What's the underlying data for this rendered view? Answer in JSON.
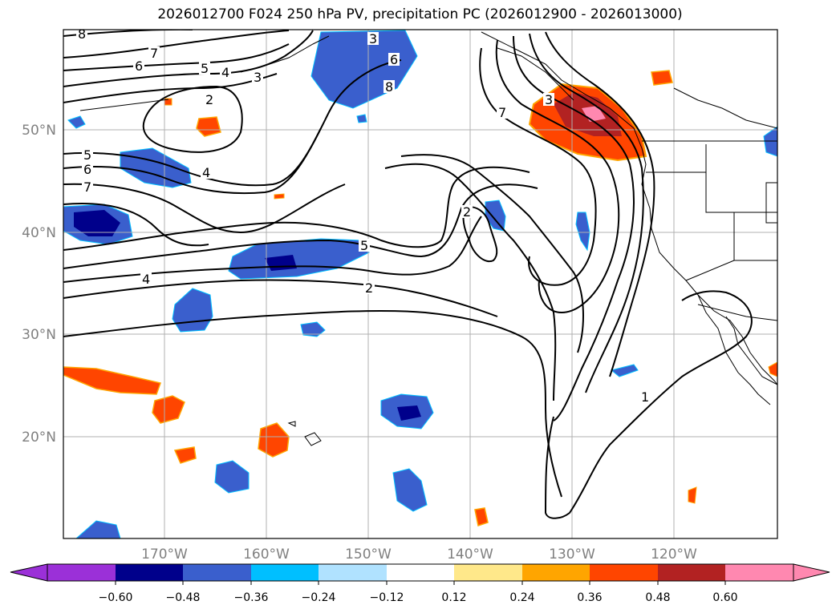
{
  "title": "2026012700 F024 250 hPa PV, precipitation PC (2026012900 - 2026013000)",
  "lat_labels": [
    "50°N",
    "40°N",
    "30°N",
    "20°N"
  ],
  "lon_labels": [
    "170°W",
    "160°W",
    "150°W",
    "140°W",
    "130°W",
    "120°W"
  ],
  "colorbar": {
    "ticks": [
      "−0.60",
      "−0.48",
      "−0.36",
      "−0.24",
      "−0.12",
      "0.12",
      "0.24",
      "0.36",
      "0.48",
      "0.60"
    ],
    "colors": [
      "#9b30d8",
      "#00008b",
      "#3a5fcd",
      "#00bfff",
      "#b0e2ff",
      "#ffffff",
      "#ffe88a",
      "#ffa500",
      "#ff4500",
      "#b22222",
      "#ff88b0"
    ]
  },
  "contour_labels": [
    "8",
    "7",
    "6",
    "5",
    "4",
    "3",
    "2",
    "5",
    "6",
    "7",
    "4",
    "3",
    "6",
    "8",
    "3",
    "7",
    "2",
    "5",
    "4",
    "2",
    "1"
  ],
  "colors": {
    "contour": "#000000",
    "grid": "#b0b0b0",
    "coast": "#000000",
    "axis_label": "#808080"
  }
}
